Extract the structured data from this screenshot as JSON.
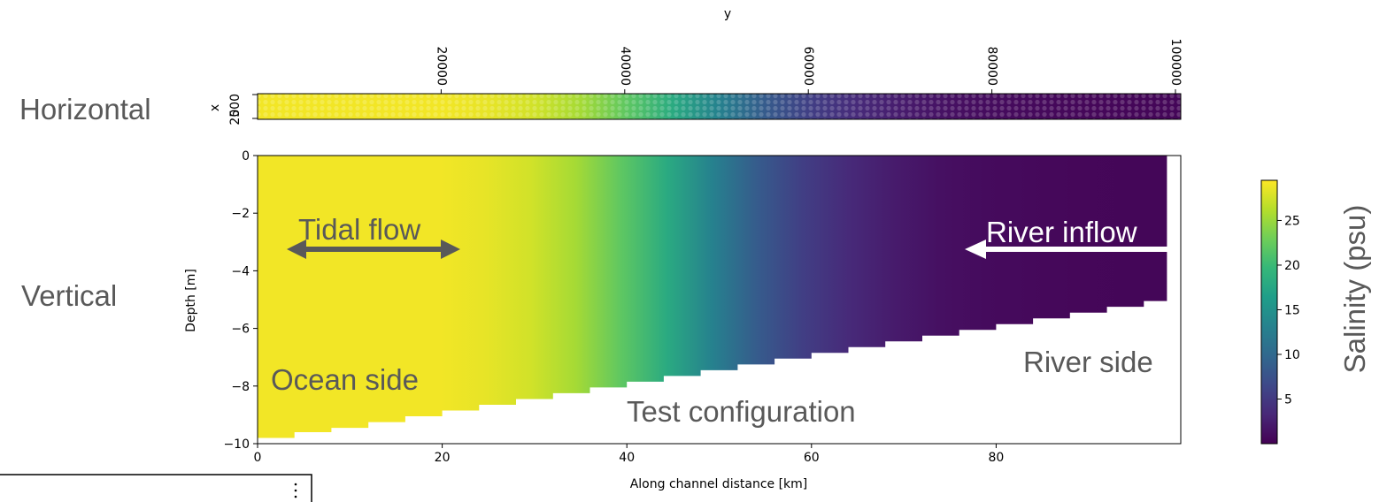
{
  "labels": {
    "horizontal": "Horizontal",
    "vertical": "Vertical",
    "tidal_flow": "Tidal flow",
    "river_inflow": "River inflow",
    "ocean_side": "Ocean side",
    "river_side": "River side",
    "test_configuration": "Test configuration"
  },
  "colors": {
    "annotation_text": "#595959",
    "tidal_arrow": "#595959",
    "river_arrow": "#ffffff",
    "viridis": [
      "#440154",
      "#482878",
      "#3e4989",
      "#31688e",
      "#26828e",
      "#1f9e89",
      "#35b779",
      "#6ece58",
      "#b5de2b",
      "#fde725"
    ]
  },
  "chart_data": [
    {
      "type": "scatter",
      "name": "horizontal-grid",
      "xlabel": "y",
      "ylabel": "x",
      "y_ticklabels": [
        "0",
        "2500"
      ],
      "x_ticks": [
        20000,
        40000,
        60000,
        80000,
        100000
      ],
      "x_ticklabels": [
        "20000",
        "40000",
        "60000",
        "80000",
        "100000"
      ],
      "xlim": [
        0,
        100000
      ],
      "ylim": [
        0,
        2500
      ],
      "description_of_color": "salinity along channel (yellow high at y=0 to purple low at y=100000)"
    },
    {
      "type": "heatmap",
      "name": "vertical-section",
      "xlabel": "Along channel distance [km]",
      "ylabel": "Depth [m]",
      "xlim": [
        0,
        100
      ],
      "ylim": [
        -10,
        0
      ],
      "x_ticks": [
        0,
        20,
        40,
        60,
        80
      ],
      "x_ticklabels": [
        "0",
        "20",
        "40",
        "60",
        "80"
      ],
      "y_ticks": [
        0,
        -2,
        -4,
        -6,
        -8,
        -10
      ],
      "y_ticklabels": [
        "0",
        "−2",
        "−4",
        "−6",
        "−8",
        "−10"
      ],
      "bathymetry": {
        "x_km": [
          0,
          4,
          8,
          12,
          16,
          20,
          24,
          28,
          32,
          36,
          40,
          44,
          48,
          52,
          56,
          60,
          64,
          68,
          72,
          76,
          80,
          84,
          88,
          92,
          96,
          98.5
        ],
        "depth_m": [
          -9.8,
          -9.6,
          -9.45,
          -9.25,
          -9.05,
          -8.85,
          -8.65,
          -8.45,
          -8.25,
          -8.05,
          -7.85,
          -7.65,
          -7.45,
          -7.25,
          -7.05,
          -6.85,
          -6.65,
          -6.45,
          -6.25,
          -6.05,
          -5.85,
          -5.65,
          -5.45,
          -5.25,
          -5.05,
          -4.8
        ]
      },
      "salinity_profile": {
        "x_km": [
          0,
          10,
          20,
          25,
          30,
          35,
          40,
          45,
          50,
          55,
          60,
          65,
          70,
          75,
          80,
          90,
          99
        ],
        "salinity_psu": [
          29,
          29,
          29,
          28.5,
          27.5,
          25.5,
          22,
          18,
          13,
          8.5,
          5.5,
          3.5,
          2.2,
          1.3,
          0.8,
          0.5,
          0.4
        ]
      }
    },
    {
      "type": "colorbar",
      "name": "salinity-colorbar",
      "label": "Salinity (psu)",
      "range": [
        0,
        29.5
      ],
      "ticks": [
        5,
        10,
        15,
        20,
        25
      ],
      "ticklabels": [
        "5",
        "10",
        "15",
        "20",
        "25"
      ]
    }
  ]
}
